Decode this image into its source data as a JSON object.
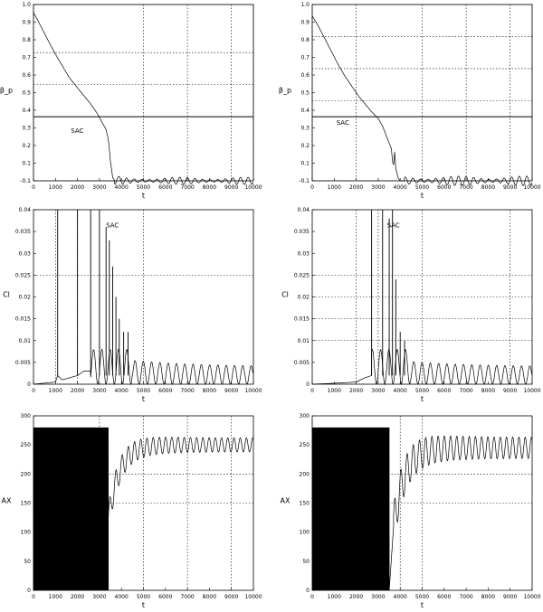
{
  "chart_data": [
    {
      "id": "top-left",
      "type": "line",
      "xlabel": "t",
      "ylabel": "β_p",
      "xlim": [
        0,
        10000
      ],
      "ylim": [
        -0.1,
        1.0
      ],
      "xticks": [
        "0",
        "1000",
        "2000",
        "3000",
        "4000",
        "5000",
        "6000",
        "7000",
        "8000",
        "9000",
        "10000"
      ],
      "yticks": [
        "-0.1",
        "0.1",
        "0.2",
        "0.3",
        "0.4",
        "0.5",
        "0.6",
        "0.7",
        "0.8",
        "0.9",
        "1.0"
      ],
      "hlines": [
        0.3
      ],
      "vgrid": [
        0,
        5000,
        7000,
        9000,
        10000
      ],
      "hgrid": [
        -0.1,
        0.5,
        0.7,
        1.0
      ],
      "annotations": [
        {
          "text": "SAC",
          "x": 1700,
          "y": 0.2
        }
      ],
      "series": [
        {
          "values_note": "",
          "x": [
            0,
            200,
            500,
            800,
            1000,
            1300,
            1600,
            2000,
            2300,
            2600,
            2900,
            3100,
            3300,
            3400,
            3450,
            3500,
            3550,
            3600,
            3700,
            3800,
            4000,
            4500,
            5000,
            6000,
            7000,
            8000,
            9000,
            10000
          ],
          "y": [
            0.95,
            0.9,
            0.82,
            0.74,
            0.69,
            0.62,
            0.55,
            0.48,
            0.43,
            0.38,
            0.32,
            0.27,
            0.22,
            0.16,
            0.1,
            0.02,
            -0.03,
            -0.08,
            -0.1,
            -0.09,
            -0.1,
            -0.1,
            -0.1,
            -0.1,
            -0.1,
            -0.1,
            -0.1,
            -0.1
          ],
          "oscillation_start": 3700,
          "oscillation_amplitude": 0.015
        }
      ]
    },
    {
      "id": "top-right",
      "type": "line",
      "xlabel": "t",
      "ylabel": "β_p",
      "xlim": [
        0,
        10000
      ],
      "ylim": [
        -0.1,
        1.0
      ],
      "xticks": [
        "0",
        "1000",
        "2000",
        "3000",
        "4000",
        "5000",
        "6000",
        "7000",
        "8000",
        "9000",
        "10000"
      ],
      "yticks": [
        "-0.1",
        "0.1",
        "0.2",
        "0.3",
        "0.4",
        "0.5",
        "0.6",
        "0.7",
        "0.8",
        "0.9",
        "1.0"
      ],
      "hlines": [
        0.3
      ],
      "vgrid": [
        0,
        2000,
        5000,
        7000,
        9000,
        10000
      ],
      "hgrid": [
        -0.1,
        0.4,
        0.6,
        0.8,
        1.0
      ],
      "annotations": [
        {
          "text": "SAC",
          "x": 1100,
          "y": 0.25
        }
      ],
      "series": [
        {
          "x": [
            0,
            300,
            600,
            900,
            1200,
            1500,
            1800,
            2100,
            2400,
            2700,
            3000,
            3200,
            3400,
            3600,
            3650,
            3700,
            3750,
            3800,
            3900,
            4000,
            4200,
            4600,
            5000,
            6000,
            7000,
            8000,
            9000,
            10000
          ],
          "y": [
            0.93,
            0.86,
            0.78,
            0.7,
            0.62,
            0.55,
            0.49,
            0.43,
            0.38,
            0.33,
            0.29,
            0.24,
            0.17,
            0.1,
            0.02,
            0.0,
            0.08,
            -0.02,
            -0.08,
            -0.1,
            -0.1,
            -0.1,
            -0.1,
            -0.1,
            -0.1,
            -0.1,
            -0.1,
            -0.1
          ],
          "oscillation_start": 4200,
          "oscillation_amplitude": 0.02
        }
      ]
    },
    {
      "id": "middle-left",
      "type": "line",
      "xlabel": "t",
      "ylabel": "Cl",
      "xlim": [
        0,
        10000
      ],
      "ylim": [
        0,
        0.04
      ],
      "xticks": [
        "0",
        "1000",
        "2000",
        "3000",
        "4000",
        "5000",
        "6000",
        "7000",
        "8000",
        "9000",
        "10000"
      ],
      "yticks": [
        "0",
        "0.005",
        "0.01",
        "0.015",
        "0.02",
        "0.025",
        "0.03",
        "0.035",
        "0.04"
      ],
      "vgrid": [
        1000,
        2000,
        5000
      ],
      "hgrid": [
        0.025
      ],
      "annotations": [
        {
          "text": "SAC",
          "x": 3300,
          "y": 0.036
        }
      ],
      "spikes": [
        {
          "x": 1100,
          "h": 0.04
        },
        {
          "x": 2000,
          "h": 0.04
        },
        {
          "x": 2600,
          "h": 0.04
        },
        {
          "x": 3000,
          "h": 0.04
        },
        {
          "x": 3300,
          "h": 0.036
        },
        {
          "x": 3450,
          "h": 0.033
        },
        {
          "x": 3600,
          "h": 0.027
        },
        {
          "x": 3750,
          "h": 0.02
        },
        {
          "x": 3900,
          "h": 0.015
        },
        {
          "x": 4100,
          "h": 0.012
        },
        {
          "x": 4300,
          "h": 0.012
        }
      ],
      "series": [
        {
          "tail_level": 0.004,
          "tail_amplitude": 0.0015,
          "early_x": [
            0,
            1000,
            1100,
            1300,
            2000,
            2300,
            2600
          ],
          "early_y": [
            0.0,
            0.0005,
            0.002,
            0.001,
            0.002,
            0.003,
            0.003
          ]
        }
      ]
    },
    {
      "id": "middle-right",
      "type": "line",
      "xlabel": "t",
      "ylabel": "Cl",
      "xlim": [
        0,
        10000
      ],
      "ylim": [
        0,
        0.04
      ],
      "xticks": [
        "0",
        "1000",
        "2000",
        "3000",
        "4000",
        "5000",
        "6000",
        "7000",
        "8000",
        "9000",
        "10000"
      ],
      "yticks": [
        "0",
        "0.005",
        "0.01",
        "0.015",
        "0.02",
        "0.025",
        "0.03",
        "0.035",
        "0.04"
      ],
      "vgrid": [
        2000,
        3000,
        5000,
        9000
      ],
      "hgrid": [
        0.025,
        0.02,
        0.015,
        0.01
      ],
      "annotations": [
        {
          "text": "SAC",
          "x": 3400,
          "y": 0.036
        }
      ],
      "spikes": [
        {
          "x": 2700,
          "h": 0.04
        },
        {
          "x": 3200,
          "h": 0.04
        },
        {
          "x": 3500,
          "h": 0.038
        },
        {
          "x": 3650,
          "h": 0.04
        },
        {
          "x": 3800,
          "h": 0.024
        },
        {
          "x": 4000,
          "h": 0.012
        },
        {
          "x": 4200,
          "h": 0.01
        }
      ],
      "series": [
        {
          "tail_level": 0.004,
          "tail_amplitude": 0.0012,
          "early_x": [
            0,
            1000,
            2000,
            2400,
            2700
          ],
          "early_y": [
            0.0,
            0.0002,
            0.0005,
            0.0015,
            0.002
          ]
        }
      ]
    },
    {
      "id": "bottom-left",
      "type": "line",
      "xlabel": "t",
      "ylabel": "AX",
      "xlim": [
        0,
        10000
      ],
      "ylim": [
        0,
        300
      ],
      "xticks": [
        "0",
        "1000",
        "2000",
        "3000",
        "4000",
        "5000",
        "6000",
        "7000",
        "8000",
        "9000",
        "10000"
      ],
      "yticks": [
        "0",
        "50",
        "100",
        "150",
        "200",
        "250",
        "300"
      ],
      "vgrid": [
        3000,
        5000,
        7000,
        9000
      ],
      "hgrid": [
        200,
        150
      ],
      "series": [
        {
          "dense_until": 3400,
          "dense_min": 0,
          "dense_max": 280,
          "dip_x": 3400,
          "dip_y": 120,
          "settle": 250,
          "tail_amplitude": 12
        }
      ]
    },
    {
      "id": "bottom-right",
      "type": "line",
      "xlabel": "t",
      "ylabel": "AX",
      "xlim": [
        0,
        10000
      ],
      "ylim": [
        0,
        300
      ],
      "xticks": [
        "0",
        "1000",
        "2000",
        "3000",
        "4000",
        "5000",
        "6000",
        "7000",
        "8000",
        "9000",
        "10000"
      ],
      "yticks": [
        "0",
        "50",
        "100",
        "150",
        "200",
        "250",
        "300"
      ],
      "vgrid": [
        4000,
        5000
      ],
      "hgrid": [
        200,
        150
      ],
      "series": [
        {
          "dense_until": 3500,
          "dense_min": 0,
          "dense_max": 280,
          "dip_x": 3700,
          "dip_y": 110,
          "settle": 245,
          "tail_amplitude": 18
        }
      ]
    }
  ]
}
